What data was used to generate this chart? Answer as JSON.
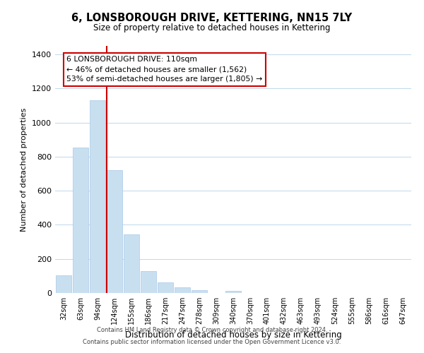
{
  "title": "6, LONSBOROUGH DRIVE, KETTERING, NN15 7LY",
  "subtitle": "Size of property relative to detached houses in Kettering",
  "xlabel": "Distribution of detached houses by size in Kettering",
  "ylabel": "Number of detached properties",
  "bar_color": "#c8dff0",
  "bar_edge_color": "#a8c8e8",
  "bin_labels": [
    "32sqm",
    "63sqm",
    "94sqm",
    "124sqm",
    "155sqm",
    "186sqm",
    "217sqm",
    "247sqm",
    "278sqm",
    "309sqm",
    "340sqm",
    "370sqm",
    "401sqm",
    "432sqm",
    "463sqm",
    "493sqm",
    "524sqm",
    "555sqm",
    "586sqm",
    "616sqm",
    "647sqm"
  ],
  "bar_heights": [
    105,
    855,
    1130,
    720,
    345,
    130,
    62,
    32,
    18,
    0,
    12,
    0,
    0,
    0,
    0,
    0,
    0,
    0,
    0,
    0,
    0
  ],
  "vline_color": "#cc0000",
  "annotation_title": "6 LONSBOROUGH DRIVE: 110sqm",
  "annotation_line1": "← 46% of detached houses are smaller (1,562)",
  "annotation_line2": "53% of semi-detached houses are larger (1,805) →",
  "annotation_box_color": "#ffffff",
  "annotation_box_edge": "#cc0000",
  "ylim": [
    0,
    1450
  ],
  "yticks": [
    0,
    200,
    400,
    600,
    800,
    1000,
    1200,
    1400
  ],
  "footer1": "Contains HM Land Registry data © Crown copyright and database right 2024.",
  "footer2": "Contains public sector information licensed under the Open Government Licence v3.0."
}
